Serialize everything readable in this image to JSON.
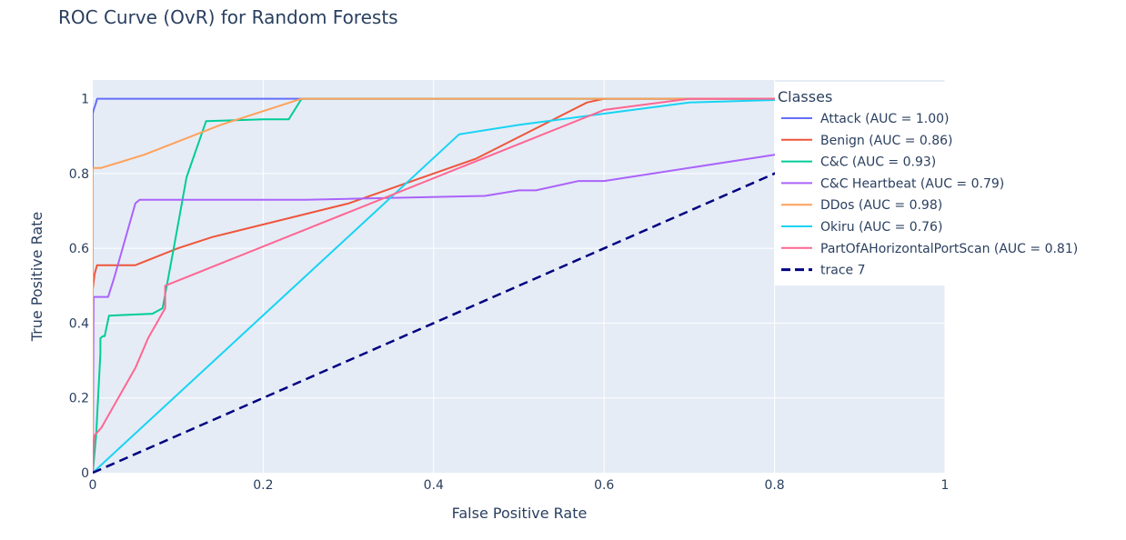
{
  "chart_data": {
    "type": "line",
    "title": "ROC Curve (OvR) for Random Forests",
    "xlabel": "False Positive Rate",
    "ylabel": "True Positive Rate",
    "xlim": [
      0,
      1
    ],
    "ylim": [
      0,
      1.05
    ],
    "xticks": [
      0,
      0.2,
      0.4,
      0.6,
      0.8,
      1
    ],
    "xtick_labels": [
      "0",
      "0.2",
      "0.4",
      "0.6",
      "0.8",
      "1"
    ],
    "yticks": [
      0,
      0.2,
      0.4,
      0.6,
      0.8,
      1
    ],
    "ytick_labels": [
      "0",
      "0.2",
      "0.4",
      "0.6",
      "0.8",
      "1"
    ],
    "grid": true,
    "legend": {
      "title": "Classes",
      "placement": "right"
    },
    "colors": {
      "plot_bg": "#e5ecf6",
      "grid": "#ffffff",
      "text": "#2a3f5f"
    },
    "series": [
      {
        "name": "Attack (AUC = 1.00)",
        "color": "#636efa",
        "dash": false,
        "x": [
          0,
          0,
          0.001,
          0.004,
          0.005,
          0.2,
          1
        ],
        "y": [
          0,
          0.96,
          0.97,
          0.99,
          1,
          1,
          1
        ]
      },
      {
        "name": "Benign (AUC = 0.86)",
        "color": "#ef553b",
        "dash": false,
        "x": [
          0,
          0,
          0.002,
          0.005,
          0.05,
          0.1,
          0.14,
          0.3,
          0.45,
          0.58,
          0.6,
          0.7,
          1
        ],
        "y": [
          0,
          0.49,
          0.53,
          0.555,
          0.555,
          0.6,
          0.63,
          0.72,
          0.84,
          0.99,
          1,
          1,
          1
        ]
      },
      {
        "name": "C&C (AUC = 0.93)",
        "color": "#00cc96",
        "dash": false,
        "x": [
          0,
          0.004,
          0.009,
          0.009,
          0.012,
          0.014,
          0.019,
          0.07,
          0.082,
          0.095,
          0.11,
          0.133,
          0.2,
          0.23,
          0.245,
          0.5,
          1
        ],
        "y": [
          0,
          0.1,
          0.32,
          0.36,
          0.365,
          0.365,
          0.42,
          0.425,
          0.44,
          0.6,
          0.79,
          0.94,
          0.945,
          0.945,
          1,
          1,
          1
        ]
      },
      {
        "name": "C&C Heartbeat (AUC = 0.79)",
        "color": "#ab63fa",
        "dash": false,
        "x": [
          0,
          0.001,
          0.003,
          0.018,
          0.025,
          0.05,
          0.055,
          0.25,
          0.46,
          0.5,
          0.52,
          0.57,
          0.6,
          0.8,
          1
        ],
        "y": [
          0,
          0.47,
          0.47,
          0.47,
          0.52,
          0.72,
          0.73,
          0.73,
          0.74,
          0.755,
          0.755,
          0.78,
          0.78,
          0.85,
          1
        ]
      },
      {
        "name": "DDos (AUC = 0.98)",
        "color": "#ffa15a",
        "dash": false,
        "x": [
          0,
          0,
          0.001,
          0.01,
          0.06,
          0.15,
          0.245,
          1
        ],
        "y": [
          0,
          0.81,
          0.815,
          0.815,
          0.85,
          0.93,
          1,
          1
        ]
      },
      {
        "name": "Okiru (AUC = 0.76)",
        "color": "#19d3f3",
        "dash": false,
        "x": [
          0,
          0.43,
          0.5,
          0.6,
          0.7,
          0.85,
          1
        ],
        "y": [
          0,
          0.905,
          0.93,
          0.96,
          0.99,
          1,
          1
        ]
      },
      {
        "name": "PartOfAHorizontalPortScan (AUC = 0.81)",
        "color": "#ff6692",
        "dash": false,
        "x": [
          0,
          0.001,
          0.002,
          0.01,
          0.05,
          0.065,
          0.075,
          0.085,
          0.085,
          0.6,
          0.7,
          1
        ],
        "y": [
          0,
          0.08,
          0.1,
          0.12,
          0.28,
          0.36,
          0.4,
          0.44,
          0.5,
          0.97,
          1,
          1
        ]
      },
      {
        "name": "trace 7",
        "color": "#000080",
        "dash": true,
        "x": [
          0,
          1
        ],
        "y": [
          0,
          1
        ]
      }
    ]
  }
}
